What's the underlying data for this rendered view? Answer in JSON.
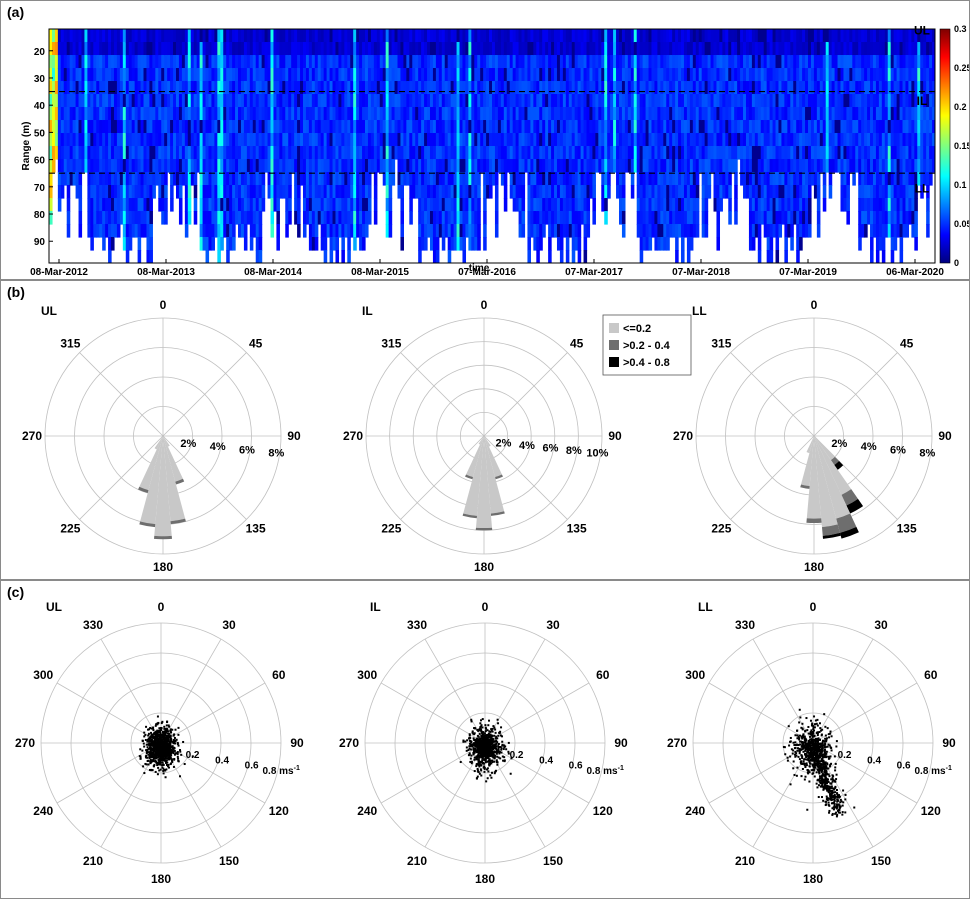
{
  "panel_labels": {
    "a": "(a)",
    "b": "(b)",
    "c": "(c)"
  },
  "colors": {
    "colormap": [
      "#00007f",
      "#0000ff",
      "#007fff",
      "#00ffff",
      "#7fff7f",
      "#ffff00",
      "#ff7f00",
      "#ff0000",
      "#7f0000"
    ],
    "rose_bins": [
      "#c8c8c8",
      "#6e6e6e",
      "#000000"
    ],
    "scatter": "#000000",
    "grid": "#c0c0c0"
  },
  "chart_data": [
    {
      "type": "heatmap",
      "panel": "(a)",
      "xlabel": "time",
      "ylabel": "Range (m)",
      "x_ticks": [
        "08-Mar-2012",
        "08-Mar-2013",
        "08-Mar-2014",
        "08-Mar-2015",
        "07-Mar-2016",
        "07-Mar-2017",
        "07-Mar-2018",
        "07-Mar-2019",
        "06-Mar-2020"
      ],
      "y_ticks": [
        20,
        30,
        40,
        50,
        60,
        70,
        80,
        90
      ],
      "ylim": [
        98,
        12
      ],
      "colorbar_ticks": [
        "0",
        "0.05",
        "0.1",
        "0.15",
        "0.2",
        "0.25",
        "0.3"
      ],
      "clim": [
        0,
        0.3
      ],
      "layer_boundaries": [
        35,
        65
      ],
      "layer_labels": [
        "UL",
        "IL",
        "LL"
      ]
    },
    {
      "type": "polar-rose",
      "panel": "(b)",
      "plots": [
        {
          "title": "UL",
          "radial_ticks": [
            "2%",
            "4%",
            "6%",
            "8%"
          ],
          "rmax": 8,
          "mean_pct": [
            {
              "dir": 150,
              "pct": [
                0.8,
                0,
                0
              ]
            },
            {
              "dir": 160,
              "pct": [
                3.2,
                0.2,
                0
              ]
            },
            {
              "dir": 170,
              "pct": [
                5.8,
                0.2,
                0
              ]
            },
            {
              "dir": 180,
              "pct": [
                6.8,
                0.2,
                0
              ]
            },
            {
              "dir": 190,
              "pct": [
                6.0,
                0.2,
                0
              ]
            },
            {
              "dir": 200,
              "pct": [
                3.8,
                0.2,
                0
              ]
            },
            {
              "dir": 210,
              "pct": [
                1.0,
                0,
                0
              ]
            }
          ]
        },
        {
          "title": "IL",
          "radial_ticks": [
            "2%",
            "4%",
            "6%",
            "8%",
            "10%"
          ],
          "rmax": 10,
          "mean_pct": [
            {
              "dir": 150,
              "pct": [
                1.0,
                0,
                0
              ]
            },
            {
              "dir": 160,
              "pct": [
                3.6,
                0.2,
                0
              ]
            },
            {
              "dir": 170,
              "pct": [
                6.6,
                0.2,
                0
              ]
            },
            {
              "dir": 180,
              "pct": [
                7.8,
                0.2,
                0
              ]
            },
            {
              "dir": 190,
              "pct": [
                6.8,
                0.2,
                0
              ]
            },
            {
              "dir": 200,
              "pct": [
                3.6,
                0.2,
                0
              ]
            },
            {
              "dir": 210,
              "pct": [
                0.8,
                0,
                0
              ]
            }
          ]
        },
        {
          "title": "LL",
          "radial_ticks": [
            "2%",
            "4%",
            "6%",
            "8%"
          ],
          "rmax": 8,
          "mean_pct": [
            {
              "dir": 140,
              "pct": [
                2.0,
                0.4,
                0.4
              ]
            },
            {
              "dir": 150,
              "pct": [
                4.4,
                0.8,
                0.6
              ]
            },
            {
              "dir": 160,
              "pct": [
                5.8,
                1.0,
                0.4
              ]
            },
            {
              "dir": 170,
              "pct": [
                6.2,
                0.6,
                0.2
              ]
            },
            {
              "dir": 180,
              "pct": [
                5.6,
                0.3,
                0
              ]
            },
            {
              "dir": 190,
              "pct": [
                3.4,
                0.2,
                0
              ]
            },
            {
              "dir": 200,
              "pct": [
                1.2,
                0,
                0
              ]
            }
          ]
        }
      ],
      "angle_ticks": [
        "0",
        "45",
        "90",
        "135",
        "180",
        "225",
        "270",
        "315"
      ],
      "legend": [
        "<=0.2",
        ">0.2 - 0.4",
        ">0.4 - 0.8"
      ]
    },
    {
      "type": "scatter",
      "panel": "(c)",
      "coordinate": "polar",
      "plots": [
        {
          "title": "UL",
          "center_dir": 175,
          "spread_r": 0.09,
          "tail": 0.0
        },
        {
          "title": "IL",
          "center_dir": 180,
          "spread_r": 0.11,
          "tail": 0.05
        },
        {
          "title": "LL",
          "center_dir": 160,
          "spread_r": 0.12,
          "tail": 0.48
        }
      ],
      "angle_ticks": [
        "0",
        "30",
        "60",
        "90",
        "120",
        "150",
        "180",
        "210",
        "240",
        "270",
        "300",
        "330"
      ],
      "radial_ticks": [
        "0.2",
        "0.4",
        "0.6",
        "0.8 ms"
      ],
      "radial_unit_superscript": "-1",
      "rmax": 0.8
    }
  ]
}
